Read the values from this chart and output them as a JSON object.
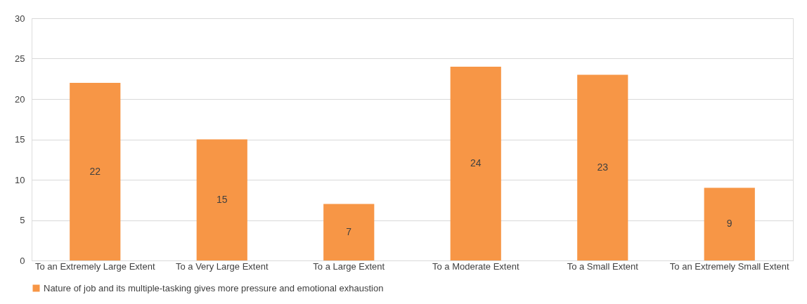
{
  "chart_data": {
    "type": "bar",
    "categories": [
      "To an Extremely Large Extent",
      "To a Very Large Extent",
      "To a Large Extent",
      "To a Moderate Extent",
      "To a Small Extent",
      "To an Extremely Small Extent"
    ],
    "series": [
      {
        "name": "Nature of job and its multiple-tasking gives more pressure and emotional exhaustion",
        "color": "#f79646",
        "values": [
          22,
          15,
          7,
          24,
          23,
          9
        ]
      }
    ],
    "ylim": [
      0,
      30
    ],
    "yticks": [
      0,
      5,
      10,
      15,
      20,
      25,
      30
    ],
    "grid": "y",
    "legend": "bottom",
    "data_labels": true
  }
}
